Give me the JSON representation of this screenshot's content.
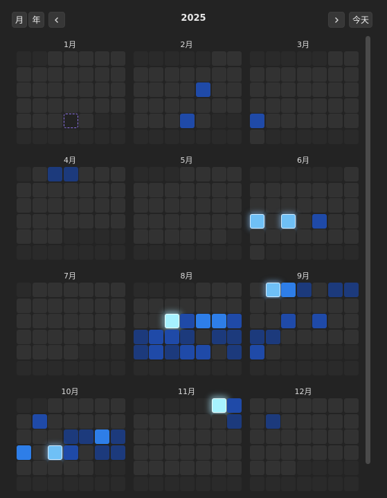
{
  "toolbar": {
    "month_button": "月",
    "year_button": "年",
    "year": 2025,
    "today_button": "今天"
  },
  "calendar": {
    "today": {
      "month": 1,
      "day": 30
    },
    "months": [
      {
        "label": "1月",
        "highlights": []
      },
      {
        "label": "2月",
        "highlights": [
          {
            "day": 14,
            "level": 2
          },
          {
            "day": 27,
            "level": 2
          }
        ]
      },
      {
        "label": "3月",
        "highlights": [
          {
            "day": 24,
            "level": 2
          }
        ]
      },
      {
        "label": "4月",
        "highlights": [
          {
            "day": 2,
            "level": 1
          },
          {
            "day": 3,
            "level": 1
          }
        ]
      },
      {
        "label": "5月",
        "highlights": []
      },
      {
        "label": "6月",
        "highlights": [
          {
            "day": 16,
            "level": 4
          },
          {
            "day": 18,
            "level": 4
          },
          {
            "day": 20,
            "level": 2
          }
        ]
      },
      {
        "label": "7月",
        "highlights": []
      },
      {
        "label": "8月",
        "highlights": [
          {
            "day": 13,
            "level": 5
          },
          {
            "day": 14,
            "level": 2
          },
          {
            "day": 15,
            "level": 3
          },
          {
            "day": 16,
            "level": 3
          },
          {
            "day": 17,
            "level": 2
          },
          {
            "day": 18,
            "level": 1
          },
          {
            "day": 19,
            "level": 2
          },
          {
            "day": 20,
            "level": 2
          },
          {
            "day": 21,
            "level": 1
          },
          {
            "day": 23,
            "level": 1
          },
          {
            "day": 24,
            "level": 1
          },
          {
            "day": 25,
            "level": 1
          },
          {
            "day": 26,
            "level": 2
          },
          {
            "day": 27,
            "level": 1
          },
          {
            "day": 28,
            "level": 2
          },
          {
            "day": 29,
            "level": 2
          },
          {
            "day": 31,
            "level": 1
          }
        ]
      },
      {
        "label": "9月",
        "highlights": [
          {
            "day": 2,
            "level": 4
          },
          {
            "day": 3,
            "level": 3
          },
          {
            "day": 4,
            "level": 1
          },
          {
            "day": 6,
            "level": 1
          },
          {
            "day": 7,
            "level": 1
          },
          {
            "day": 17,
            "level": 2
          },
          {
            "day": 19,
            "level": 2
          },
          {
            "day": 22,
            "level": 1
          },
          {
            "day": 23,
            "level": 1
          },
          {
            "day": 29,
            "level": 2
          }
        ]
      },
      {
        "label": "10月",
        "highlights": [
          {
            "day": 7,
            "level": 2
          },
          {
            "day": 16,
            "level": 1
          },
          {
            "day": 17,
            "level": 1
          },
          {
            "day": 18,
            "level": 3
          },
          {
            "day": 19,
            "level": 1
          },
          {
            "day": 20,
            "level": 3
          },
          {
            "day": 22,
            "level": 4
          },
          {
            "day": 23,
            "level": 2
          },
          {
            "day": 25,
            "level": 1
          },
          {
            "day": 26,
            "level": 1
          }
        ]
      },
      {
        "label": "11月",
        "highlights": [
          {
            "day": 1,
            "level": 5
          },
          {
            "day": 2,
            "level": 2
          },
          {
            "day": 9,
            "level": 1
          }
        ]
      },
      {
        "label": "12月",
        "highlights": [
          {
            "day": 9,
            "level": 1
          }
        ]
      }
    ]
  }
}
